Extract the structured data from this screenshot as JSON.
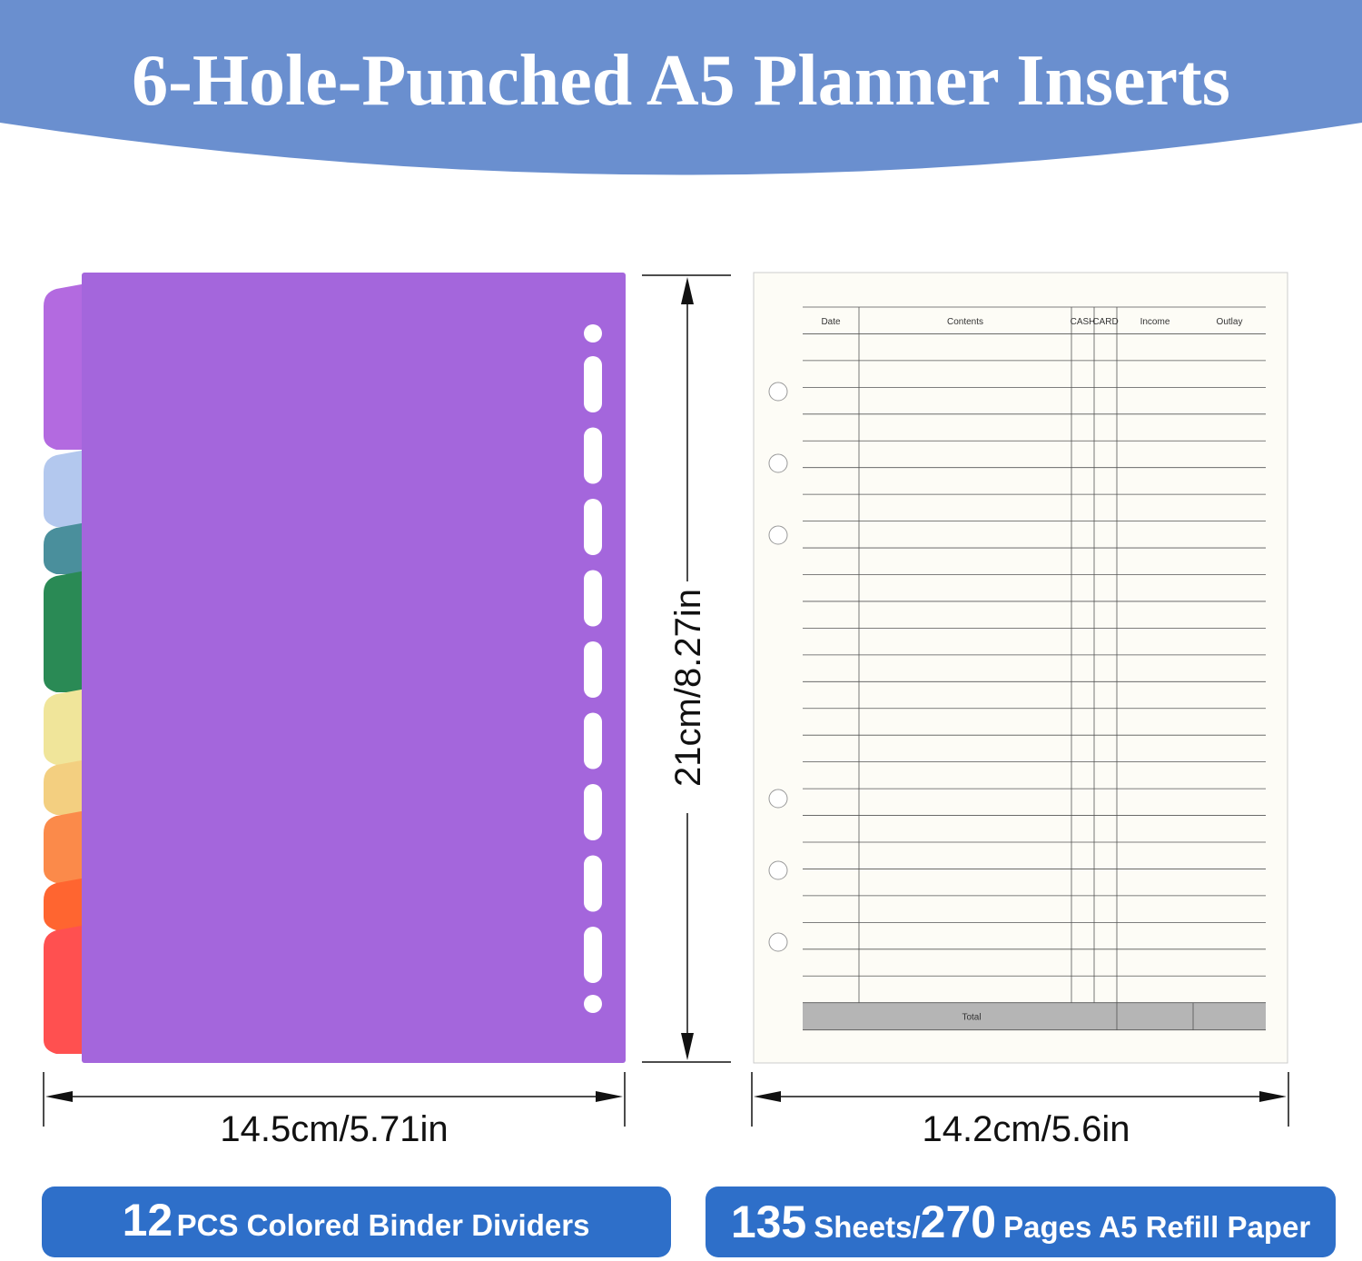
{
  "title": "6-Hole-Punched A5 Planner Inserts",
  "divider": {
    "height_label": "21cm/8.27in",
    "width_label": "14.5cm/5.71in",
    "banner": {
      "count": "12",
      "text": "PCS Colored Binder Dividers"
    }
  },
  "refill": {
    "width_label": "14.2cm/5.6in",
    "table": {
      "headers": [
        "Date",
        "Contents",
        "CASH",
        "CARD",
        "Income",
        "Outlay"
      ],
      "total_label": "Total"
    },
    "banner": {
      "sheets": "135",
      "sheets_unit": "Sheets/",
      "pages": "270",
      "pages_text": "Pages A5 Refill Paper"
    }
  }
}
